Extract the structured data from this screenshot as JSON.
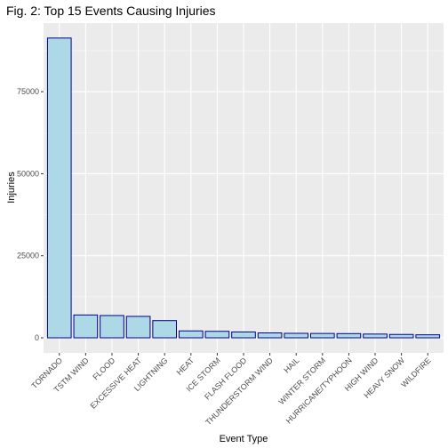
{
  "chart_data": {
    "type": "bar",
    "title": "Fig. 2: Top 15 Events Causing Injuries",
    "xlabel": "Event Type",
    "ylabel": "Injuries",
    "categories": [
      "TORNADO",
      "TSTM WIND",
      "FLOOD",
      "EXCESSIVE HEAT",
      "LIGHTNING",
      "HEAT",
      "ICE STORM",
      "FLASH FLOOD",
      "THUNDERSTORM WIND",
      "HAIL",
      "WINTER STORM",
      "HURRICANE/TYPHOON",
      "HIGH WIND",
      "HEAVY SNOW",
      "WILDFIRE"
    ],
    "values": [
      91346,
      6957,
      6789,
      6525,
      5230,
      2100,
      1975,
      1777,
      1488,
      1361,
      1321,
      1275,
      1137,
      1021,
      911
    ],
    "ylim": [
      -4600,
      95900
    ],
    "yticks": [
      0,
      25000,
      50000,
      75000
    ],
    "grid": true,
    "colors": {
      "bar_fill": "#add8e6",
      "bar_stroke": "#00008b",
      "panel_bg": "#ebebeb",
      "grid": "#ffffff"
    }
  }
}
